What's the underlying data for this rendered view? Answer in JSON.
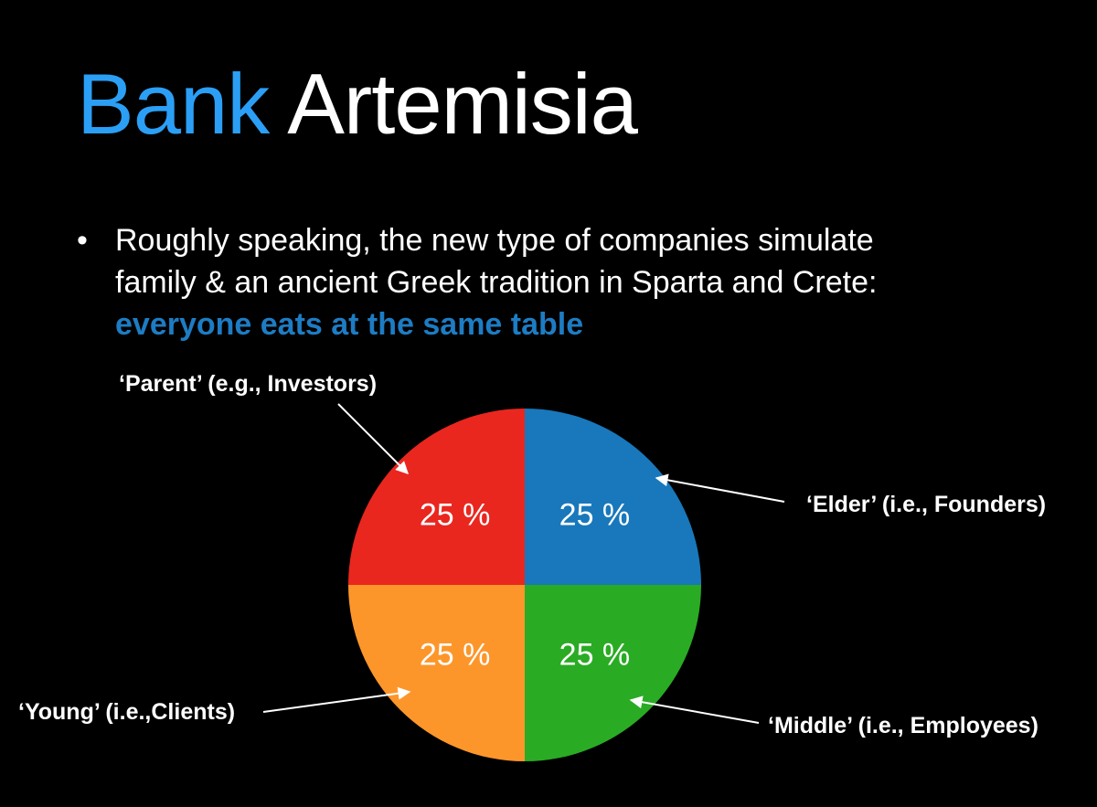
{
  "slide": {
    "title_part1": "Bank",
    "title_part2": "Artemisia",
    "bullet_symbol": "•",
    "bullet_line1": "Roughly speaking, the new type of companies simulate",
    "bullet_line2": "family & an ancient Greek tradition in Sparta and Crete:",
    "bullet_highlight": "everyone eats at the same table",
    "colors": {
      "title_accent": "#2b9ff5",
      "highlight": "#1d7cc3",
      "background": "#000000",
      "text": "#ffffff"
    }
  },
  "chart_data": {
    "type": "pie",
    "title": "",
    "series": [
      {
        "label": "25 %",
        "value": 25,
        "color": "#1878bb",
        "callout": "‘Elder’ (i.e., Founders)"
      },
      {
        "label": "25 %",
        "value": 25,
        "color": "#2aab24",
        "callout": "‘Middle’ (i.e., Employees)"
      },
      {
        "label": "25 %",
        "value": 25,
        "color": "#fd962a",
        "callout": "‘Young’ (i.e.,Clients)"
      },
      {
        "label": "25 %",
        "value": 25,
        "color": "#e9271f",
        "callout": "‘Parent’ (e.g., Investors)"
      }
    ],
    "start_position": "12 o'clock, clockwise",
    "legend": "none"
  }
}
